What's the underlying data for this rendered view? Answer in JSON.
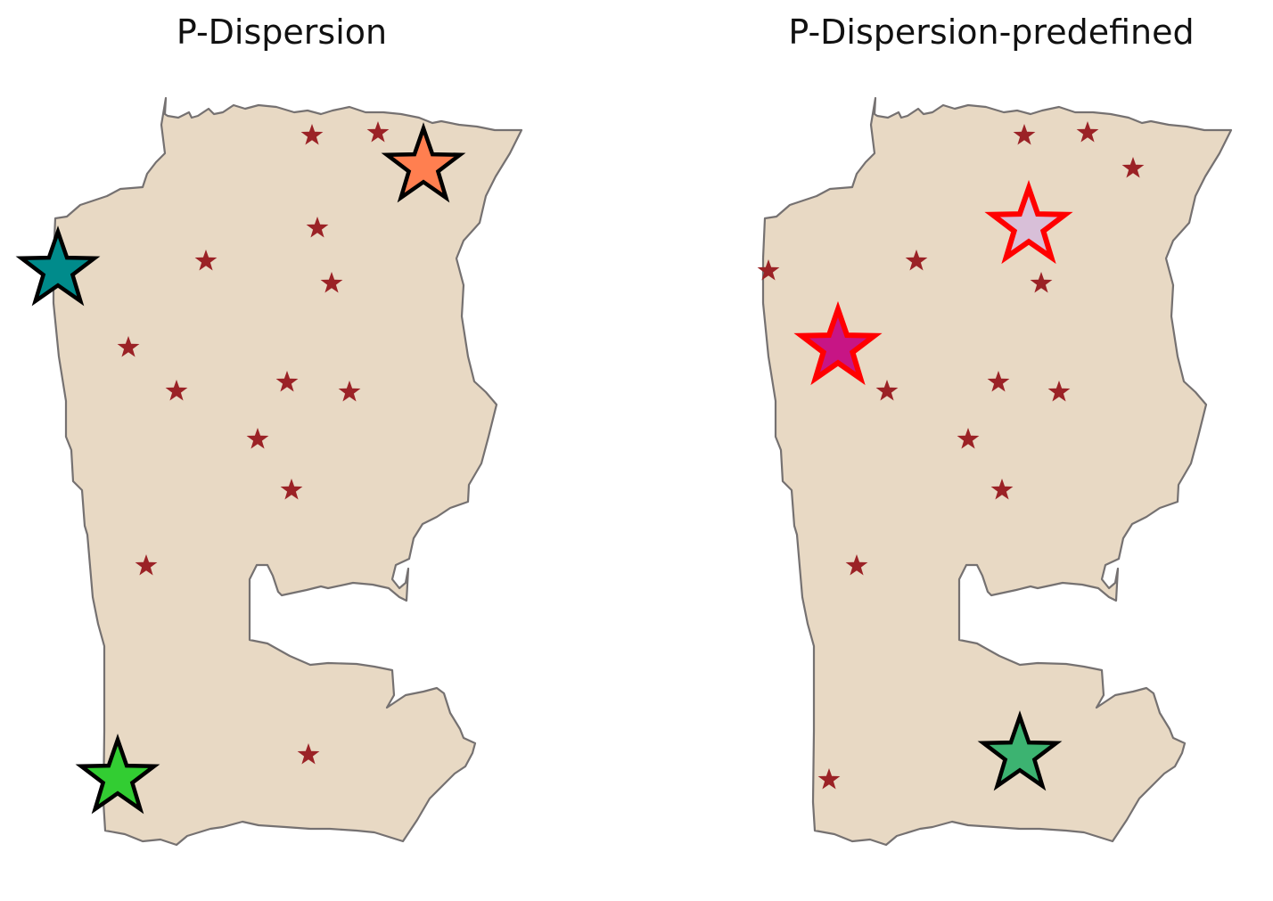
{
  "panels": [
    {
      "title": "P-Dispersion",
      "candidates": [
        [
          350,
          152
        ],
        [
          424,
          149
        ],
        [
          356,
          256
        ],
        [
          231,
          293
        ],
        [
          372,
          318
        ],
        [
          144,
          390
        ],
        [
          198,
          439
        ],
        [
          322,
          429
        ],
        [
          392,
          440
        ],
        [
          289,
          493
        ],
        [
          327,
          550
        ],
        [
          164,
          635
        ],
        [
          346,
          847
        ]
      ],
      "selected": [
        {
          "pos": [
            475,
            187
          ],
          "fill": "#ff7f50",
          "stroke": "#000000"
        },
        {
          "pos": [
            65,
            303
          ],
          "fill": "#008b8b",
          "stroke": "#000000"
        },
        {
          "pos": [
            132,
            873
          ],
          "fill": "#32cd32",
          "stroke": "#000000"
        }
      ]
    },
    {
      "title": "P-Dispersion-predefined",
      "candidates": [
        [
          1149,
          152
        ],
        [
          1220,
          149
        ],
        [
          1271,
          189
        ],
        [
          862,
          304
        ],
        [
          1028,
          293
        ],
        [
          1168,
          318
        ],
        [
          995,
          439
        ],
        [
          1120,
          429
        ],
        [
          1188,
          440
        ],
        [
          1086,
          493
        ],
        [
          1124,
          550
        ],
        [
          961,
          635
        ],
        [
          930,
          875
        ]
      ],
      "selected": [
        {
          "pos": [
            1154,
            254
          ],
          "fill": "#d8bfd8",
          "stroke": "#ff0000"
        },
        {
          "pos": [
            940,
            390
          ],
          "fill": "#c71585",
          "stroke": "#ff0000"
        },
        {
          "pos": [
            1144,
            847
          ],
          "fill": "#3cb371",
          "stroke": "#000000"
        }
      ]
    }
  ],
  "colors": {
    "region_fill": "#e8d9c4",
    "region_edge": "#757171",
    "candidate": "#9b2226"
  }
}
